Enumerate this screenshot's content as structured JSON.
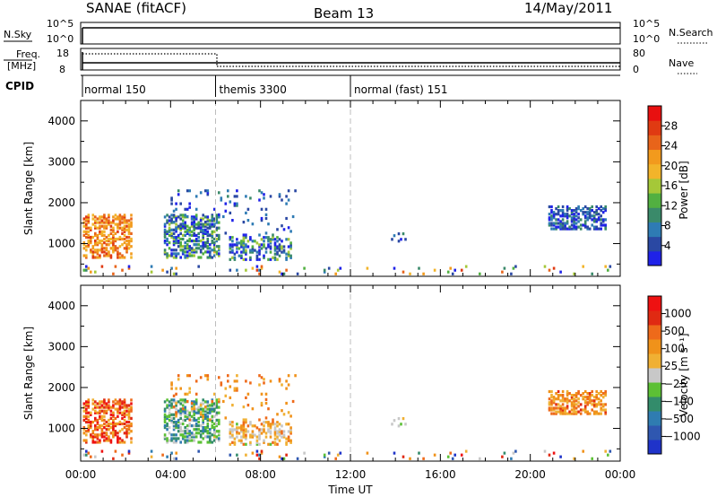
{
  "header": {
    "station": "SANAE (fitACF)",
    "beam": "Beam 13",
    "date": "14/May/2011"
  },
  "strip_sky": {
    "left_label": "N.Sky",
    "left_ticks": [
      "10^5",
      "10^0"
    ],
    "right_label": "N.Search",
    "right_ticks": [
      "10^5",
      "10^0"
    ]
  },
  "strip_freq": {
    "left_label_1": "Freq.",
    "left_label_2": "[MHz]",
    "left_ticks": [
      "18",
      "8"
    ],
    "right_label": "Nave",
    "right_ticks": [
      "80",
      "0"
    ]
  },
  "cpid": {
    "label": "CPID",
    "segments": [
      {
        "name": "normal 150",
        "start": 0
      },
      {
        "name": "themis 3300",
        "start": 6
      },
      {
        "name": "normal (fast) 151",
        "start": 12
      }
    ]
  },
  "colors": {
    "power_scale": [
      "#1f22e8",
      "#2a48a3",
      "#2e7bb4",
      "#3a8a6a",
      "#52b041",
      "#a5c838",
      "#f2b42a",
      "#f29a1d",
      "#e8641a",
      "#e03a12",
      "#e81010"
    ],
    "velocity_scale": [
      "#1f33c9",
      "#2f57b0",
      "#2f7cb1",
      "#338c6b",
      "#5cc035",
      "#c8c8c8",
      "#f0b033",
      "#f0921a",
      "#ee6a1a",
      "#e02a12",
      "#ee1111"
    ]
  },
  "chart_data": [
    {
      "type": "heatmap",
      "name": "power",
      "ylabel": "Slant Range [km]",
      "yticks": [
        "4000",
        "3000",
        "2000",
        "1000"
      ],
      "ylim": [
        200,
        4500
      ],
      "colorbar_label": "Power [dB]",
      "colorbar_ticks": [
        "28",
        "24",
        "20",
        "16",
        "12",
        "8",
        "4"
      ],
      "clim": [
        0,
        30
      ]
    },
    {
      "type": "heatmap",
      "name": "velocity",
      "ylabel": "Slant Range [km]",
      "yticks": [
        "4000",
        "3000",
        "2000",
        "1000"
      ],
      "ylim": [
        200,
        4500
      ],
      "colorbar_label": "Velocity [m s⁻¹]",
      "colorbar_ticks": [
        "1000",
        "500",
        "100",
        "25",
        "−25",
        "−100",
        "−500",
        "−1000"
      ]
    }
  ],
  "xaxis": {
    "label": "Time UT",
    "ticks": [
      "00:00",
      "04:00",
      "08:00",
      "12:00",
      "16:00",
      "20:00",
      "00:00"
    ],
    "xlim": [
      0,
      24
    ],
    "dashed_markers": [
      6,
      12
    ]
  }
}
